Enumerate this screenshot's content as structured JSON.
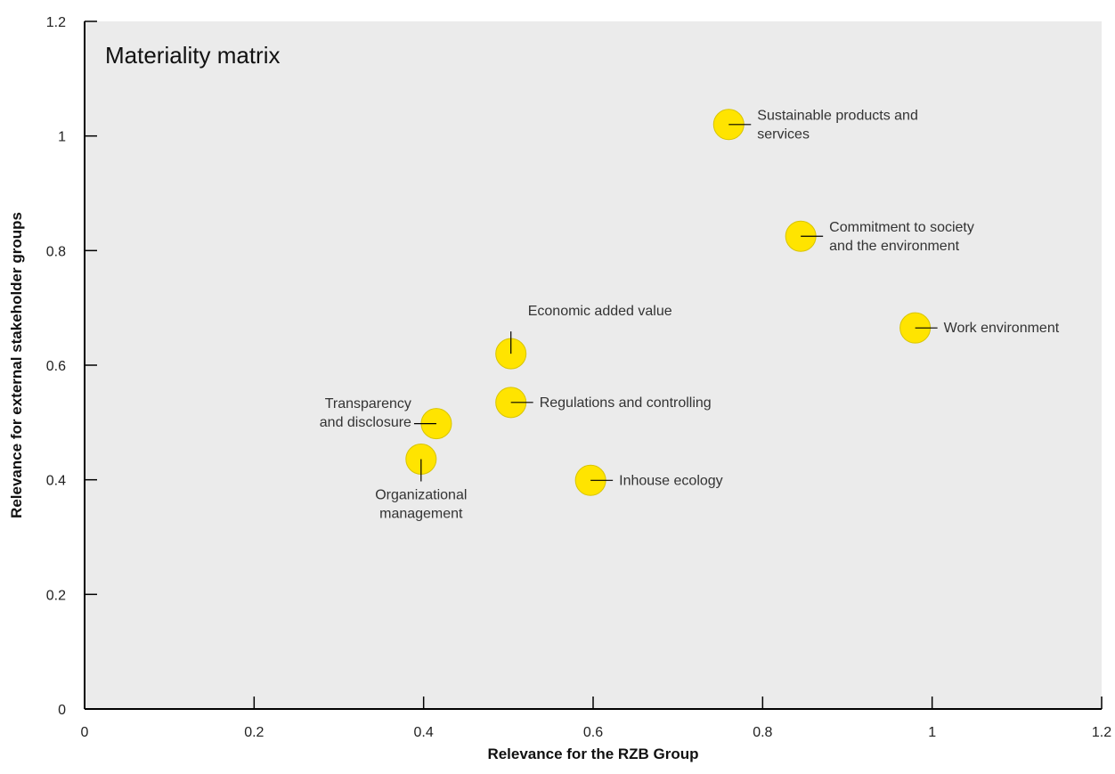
{
  "chart_data": {
    "type": "scatter",
    "title": "Materiality matrix",
    "xlabel": "Relevance for the RZB Group",
    "ylabel": "Relevance for external stakeholder groups",
    "xlim": [
      0,
      1.2
    ],
    "ylim": [
      0,
      1.2
    ],
    "x_ticks": [
      "0",
      "0.2",
      "0.4",
      "0.6",
      "0.8",
      "1",
      "1.2"
    ],
    "y_ticks": [
      "0",
      "0.2",
      "0.4",
      "0.6",
      "0.8",
      "1",
      "1.2"
    ],
    "grid": false,
    "colors": {
      "plot_background": "#ebebeb",
      "marker_fill": "#ffe400",
      "marker_stroke": "#d8c400",
      "axis": "#000000"
    },
    "points": [
      {
        "label": "Sustainable products and services",
        "lines": [
          "Sustainable products and",
          "services"
        ],
        "x": 0.76,
        "y": 1.02,
        "label_side": "right"
      },
      {
        "label": "Commitment to society and the environment",
        "lines": [
          "Commitment to society",
          "and the environment"
        ],
        "x": 0.845,
        "y": 0.825,
        "label_side": "right"
      },
      {
        "label": "Work environment",
        "lines": [
          "Work environment"
        ],
        "x": 0.98,
        "y": 0.665,
        "label_side": "right"
      },
      {
        "label": "Economic added value",
        "lines": [
          "Economic added value"
        ],
        "x": 0.503,
        "y": 0.62,
        "label_side": "top"
      },
      {
        "label": "Regulations and controlling",
        "lines": [
          "Regulations and controlling"
        ],
        "x": 0.503,
        "y": 0.535,
        "label_side": "right"
      },
      {
        "label": "Transparency and disclosure",
        "lines": [
          "Transparency",
          "and disclosure"
        ],
        "x": 0.415,
        "y": 0.498,
        "label_side": "left"
      },
      {
        "label": "Organizational management",
        "lines": [
          "Organizational",
          "management"
        ],
        "x": 0.397,
        "y": 0.436,
        "label_side": "bottom"
      },
      {
        "label": "Inhouse ecology",
        "lines": [
          "Inhouse ecology"
        ],
        "x": 0.597,
        "y": 0.399,
        "label_side": "right"
      }
    ]
  }
}
